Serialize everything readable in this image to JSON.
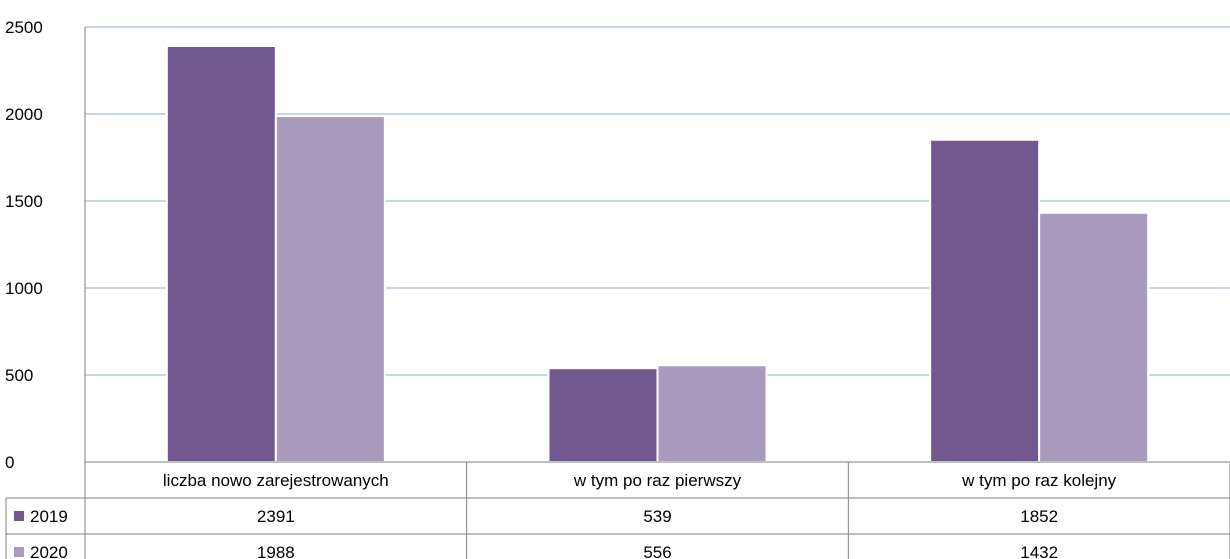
{
  "chart_data": {
    "type": "bar",
    "categories": [
      "liczba nowo zarejestrowanych",
      "w tym po raz pierwszy",
      "w tym po raz kolejny"
    ],
    "series": [
      {
        "name": "2019",
        "values": [
          2391,
          539,
          1852
        ],
        "color": "#71588f"
      },
      {
        "name": "2020",
        "values": [
          1988,
          556,
          1432
        ],
        "color": "#a99bbd"
      }
    ],
    "yticks": [
      "0",
      "500",
      "1000",
      "1500",
      "2000",
      "2500"
    ],
    "ylim": [
      0,
      2500
    ],
    "grid": true,
    "legend": "data-table-left",
    "data_table": {
      "rows": [
        {
          "series": "2019",
          "cells": [
            "2391",
            "539",
            "1852"
          ]
        },
        {
          "series": "2020",
          "cells": [
            "1988",
            "556",
            "1432"
          ]
        }
      ]
    },
    "colors": {
      "gridline": "#b4c6e7",
      "border": "#7f7f7f"
    }
  }
}
